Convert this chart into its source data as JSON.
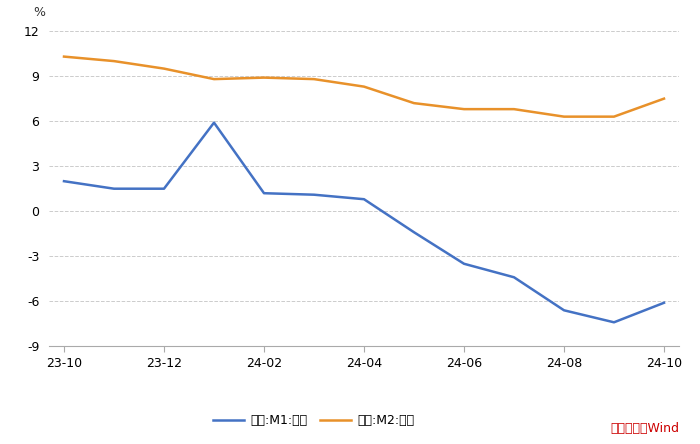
{
  "x_tick_labels": [
    "23-10",
    "23-12",
    "24-02",
    "24-04",
    "24-06",
    "24-08",
    "24-10"
  ],
  "x_tick_positions": [
    0,
    2,
    4,
    6,
    8,
    10,
    12
  ],
  "m1_data": [
    2.0,
    1.5,
    1.5,
    5.9,
    1.2,
    1.1,
    0.8,
    -1.4,
    -3.5,
    -4.4,
    -6.6,
    -7.4,
    -6.1
  ],
  "m2_data": [
    10.3,
    10.0,
    9.5,
    8.8,
    8.9,
    8.8,
    8.3,
    7.2,
    6.8,
    6.8,
    6.3,
    6.3,
    7.5
  ],
  "m1_color": "#4472c4",
  "m2_color": "#e8912a",
  "ylim": [
    -9,
    12
  ],
  "yticks": [
    -9,
    -6,
    -3,
    0,
    3,
    6,
    9,
    12
  ],
  "xlim": [
    -0.3,
    12.3
  ],
  "background_color": "#ffffff",
  "grid_color": "#cccccc",
  "grid_linestyle": "--",
  "ylabel": "%",
  "source_text": "数据来源：Wind",
  "source_color": "#cc0000",
  "legend_m1": "中国:M1:同比",
  "legend_m2": "中国:M2:同比",
  "line_width": 1.8,
  "tick_label_fontsize": 9,
  "spine_color": "#aaaaaa"
}
